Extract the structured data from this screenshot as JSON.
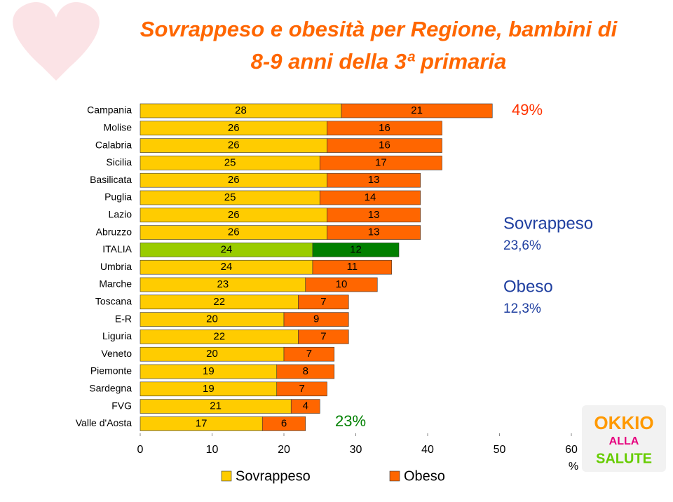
{
  "chart_data": {
    "type": "stacked-barh",
    "title": "Sovrappeso e obesità per Regione, bambini di 8-9 anni della 3ª primaria",
    "categories": [
      "Campania",
      "Molise",
      "Calabria",
      "Sicilia",
      "Basilicata",
      "Puglia",
      "Lazio",
      "Abruzzo",
      "ITALIA",
      "Umbria",
      "Marche",
      "Toscana",
      "E-R",
      "Liguria",
      "Veneto",
      "Piemonte",
      "Sardegna",
      "FVG",
      "Valle d'Aosta"
    ],
    "series": [
      {
        "name": "Sovrappeso",
        "color": "#ffcc00",
        "values": [
          28,
          26,
          26,
          25,
          26,
          25,
          26,
          26,
          24,
          24,
          23,
          22,
          20,
          22,
          20,
          19,
          19,
          21,
          17
        ]
      },
      {
        "name": "Obeso",
        "color": "#ff6600",
        "values": [
          21,
          16,
          16,
          17,
          13,
          14,
          13,
          13,
          12,
          11,
          10,
          7,
          9,
          7,
          7,
          8,
          7,
          4,
          6
        ]
      }
    ],
    "highlight": {
      "category": "ITALIA",
      "colors": [
        "#99cc00",
        "#008000"
      ]
    },
    "xlim": [
      0,
      60
    ],
    "xticks": [
      0,
      10,
      20,
      30,
      40,
      50,
      60
    ],
    "xlabel": "%",
    "annotations": [
      {
        "text": "49%",
        "color": "#ff3300"
      },
      {
        "text": "23%",
        "color": "#008000"
      },
      {
        "text": "Sovrappeso",
        "color": "#1f3fa0"
      },
      {
        "text": "23,6%",
        "color": "#1f3fa0"
      },
      {
        "text": "Obeso",
        "color": "#1f3fa0"
      },
      {
        "text": "12,3%",
        "color": "#1f3fa0"
      }
    ],
    "logo_text": [
      "OKKIO",
      "ALLA",
      "SALUTE"
    ]
  }
}
